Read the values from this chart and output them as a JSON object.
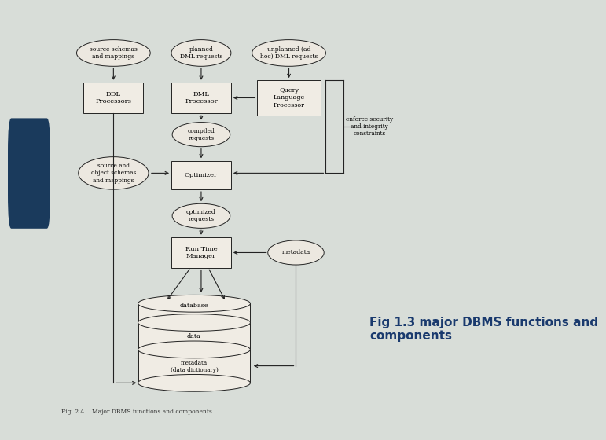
{
  "slide_bg": "#d8ddd8",
  "left_bar_color": "#90c090",
  "dark_rect_color": "#1a3a5c",
  "page_bg": "#e8e4dc",
  "box_fill": "#f0ece4",
  "ellipse_fill": "#ece8e0",
  "edge_color": "#222222",
  "arrow_color": "#222222",
  "title_text": "Fig 1.3 major DBMS functions and\ncomponents",
  "title_color": "#1a3a6e",
  "title_fontsize": 11,
  "fig_caption": "Fig. 2.4    Major DBMS functions and components",
  "fig_caption_fontsize": 5.5
}
